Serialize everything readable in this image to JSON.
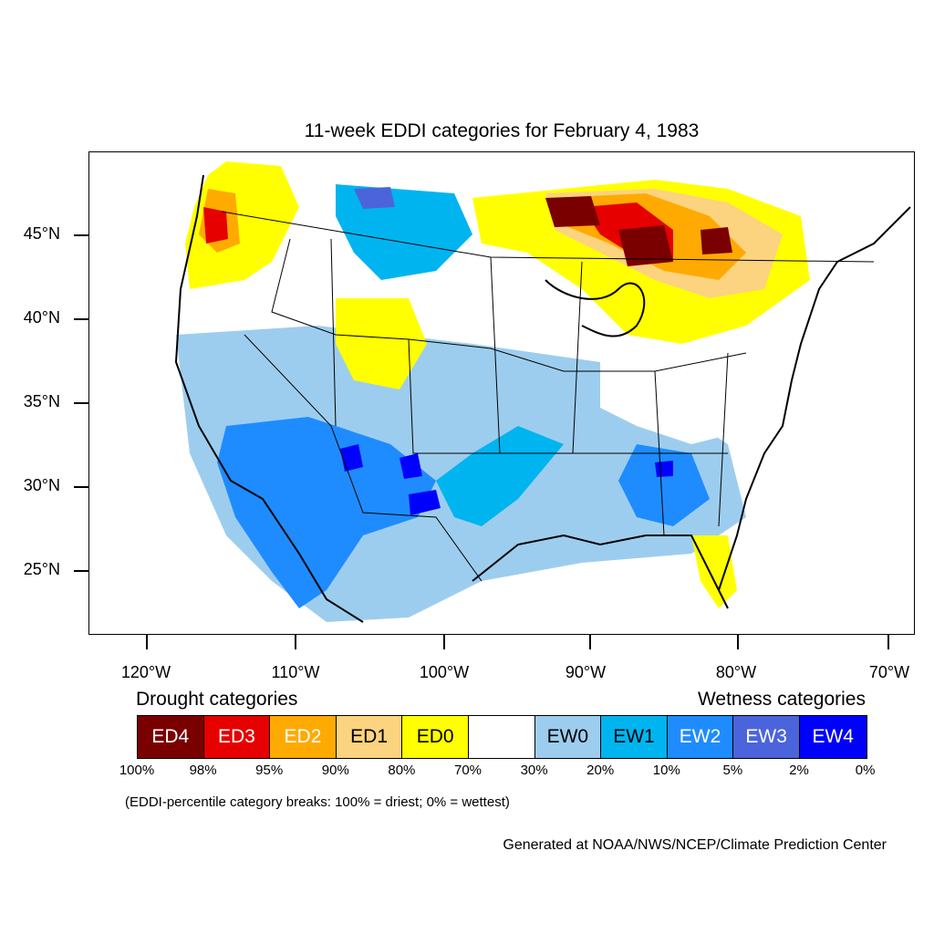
{
  "title": "11-week EDDI categories for February 4, 1983",
  "lat_labels": [
    "45°N",
    "40°N",
    "35°N",
    "30°N",
    "25°N"
  ],
  "lon_labels": [
    "120°W",
    "110°W",
    "100°W",
    "90°W",
    "80°W",
    "70°W"
  ],
  "legend": {
    "drought_title": "Drought categories",
    "wetness_title": "Wetness categories",
    "categories": [
      {
        "label": "ED4",
        "color": "#7a0000",
        "text_color": "#ffffff"
      },
      {
        "label": "ED3",
        "color": "#e60000",
        "text_color": "#ffffff"
      },
      {
        "label": "ED2",
        "color": "#ffaa00",
        "text_color": "#ffffff"
      },
      {
        "label": "ED1",
        "color": "#fcd37f",
        "text_color": "#000000"
      },
      {
        "label": "ED0",
        "color": "#ffff00",
        "text_color": "#000000"
      },
      {
        "label": "",
        "color": "#ffffff",
        "text_color": "#000000"
      },
      {
        "label": "EW0",
        "color": "#9dcdee",
        "text_color": "#000000"
      },
      {
        "label": "EW1",
        "color": "#00b4f0",
        "text_color": "#000000"
      },
      {
        "label": "EW2",
        "color": "#1e8cff",
        "text_color": "#ffffff"
      },
      {
        "label": "EW3",
        "color": "#4b64dc",
        "text_color": "#ffffff"
      },
      {
        "label": "EW4",
        "color": "#0000ff",
        "text_color": "#ffffff"
      }
    ],
    "breaks": [
      "100%",
      "98%",
      "95%",
      "90%",
      "80%",
      "70%",
      "30%",
      "20%",
      "10%",
      "5%",
      "2%",
      "0%"
    ]
  },
  "note": "(EDDI-percentile category breaks: 100% = driest; 0% = wettest)",
  "credit": "Generated at NOAA/NWS/NCEP/Climate Prediction Center"
}
